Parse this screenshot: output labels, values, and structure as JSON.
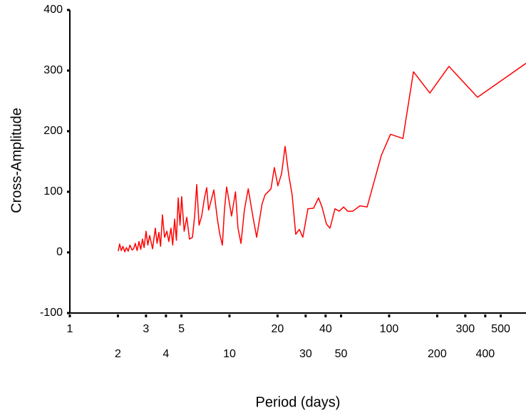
{
  "chart_data": {
    "type": "line",
    "xlabel": "Period (days)",
    "ylabel": "Cross-Amplitude",
    "xscale": "log",
    "xlim": [
      1,
      720
    ],
    "ylim": [
      -100,
      400
    ],
    "xticks": [
      1,
      2,
      3,
      4,
      5,
      10,
      20,
      30,
      40,
      50,
      100,
      200,
      300,
      400,
      500
    ],
    "yticks": [
      -100,
      0,
      100,
      200,
      300,
      400
    ],
    "series": [
      {
        "name": "Cross-Amplitude",
        "color": "#ff0000",
        "x": [
          2.01,
          2.05,
          2.1,
          2.15,
          2.21,
          2.26,
          2.32,
          2.38,
          2.45,
          2.51,
          2.57,
          2.64,
          2.71,
          2.78,
          2.85,
          2.92,
          3.0,
          3.08,
          3.16,
          3.3,
          3.43,
          3.52,
          3.61,
          3.7,
          3.8,
          3.92,
          4.05,
          4.17,
          4.3,
          4.41,
          4.53,
          4.65,
          4.77,
          4.9,
          5.02,
          5.2,
          5.4,
          5.62,
          5.86,
          6.05,
          6.23,
          6.45,
          6.7,
          6.95,
          7.2,
          7.4,
          7.66,
          7.98,
          8.4,
          8.7,
          9.02,
          9.3,
          9.6,
          10.3,
          10.9,
          11.3,
          11.8,
          12.4,
          13.1,
          14.0,
          14.8,
          16.0,
          16.7,
          18.2,
          19.1,
          20.1,
          21.2,
          22.3,
          23.5,
          24.7,
          26.0,
          27.4,
          28.8,
          31.0,
          33.6,
          36.1,
          38.0,
          40.5,
          42.6,
          45.8,
          48.7,
          51.8,
          55.0,
          59.2,
          65.6,
          72.8,
          89.3,
          102,
          122,
          142,
          180,
          237,
          358,
          720
        ],
        "values": [
          2,
          14,
          3,
          10,
          1,
          8,
          2,
          12,
          4,
          6,
          15,
          3,
          18,
          5,
          22,
          8,
          35,
          12,
          28,
          6,
          40,
          15,
          33,
          10,
          62,
          25,
          35,
          18,
          40,
          12,
          55,
          20,
          90,
          45,
          92,
          35,
          58,
          22,
          25,
          60,
          112,
          45,
          60,
          88,
          107,
          70,
          85,
          103,
          55,
          30,
          12,
          70,
          108,
          60,
          100,
          40,
          15,
          70,
          105,
          60,
          25,
          80,
          95,
          105,
          140,
          110,
          130,
          175,
          128,
          95,
          30,
          38,
          25,
          72,
          73,
          90,
          75,
          47,
          40,
          72,
          68,
          75,
          68,
          68,
          77,
          75,
          160,
          195,
          188,
          298,
          263,
          307,
          256,
          312
        ]
      }
    ]
  }
}
